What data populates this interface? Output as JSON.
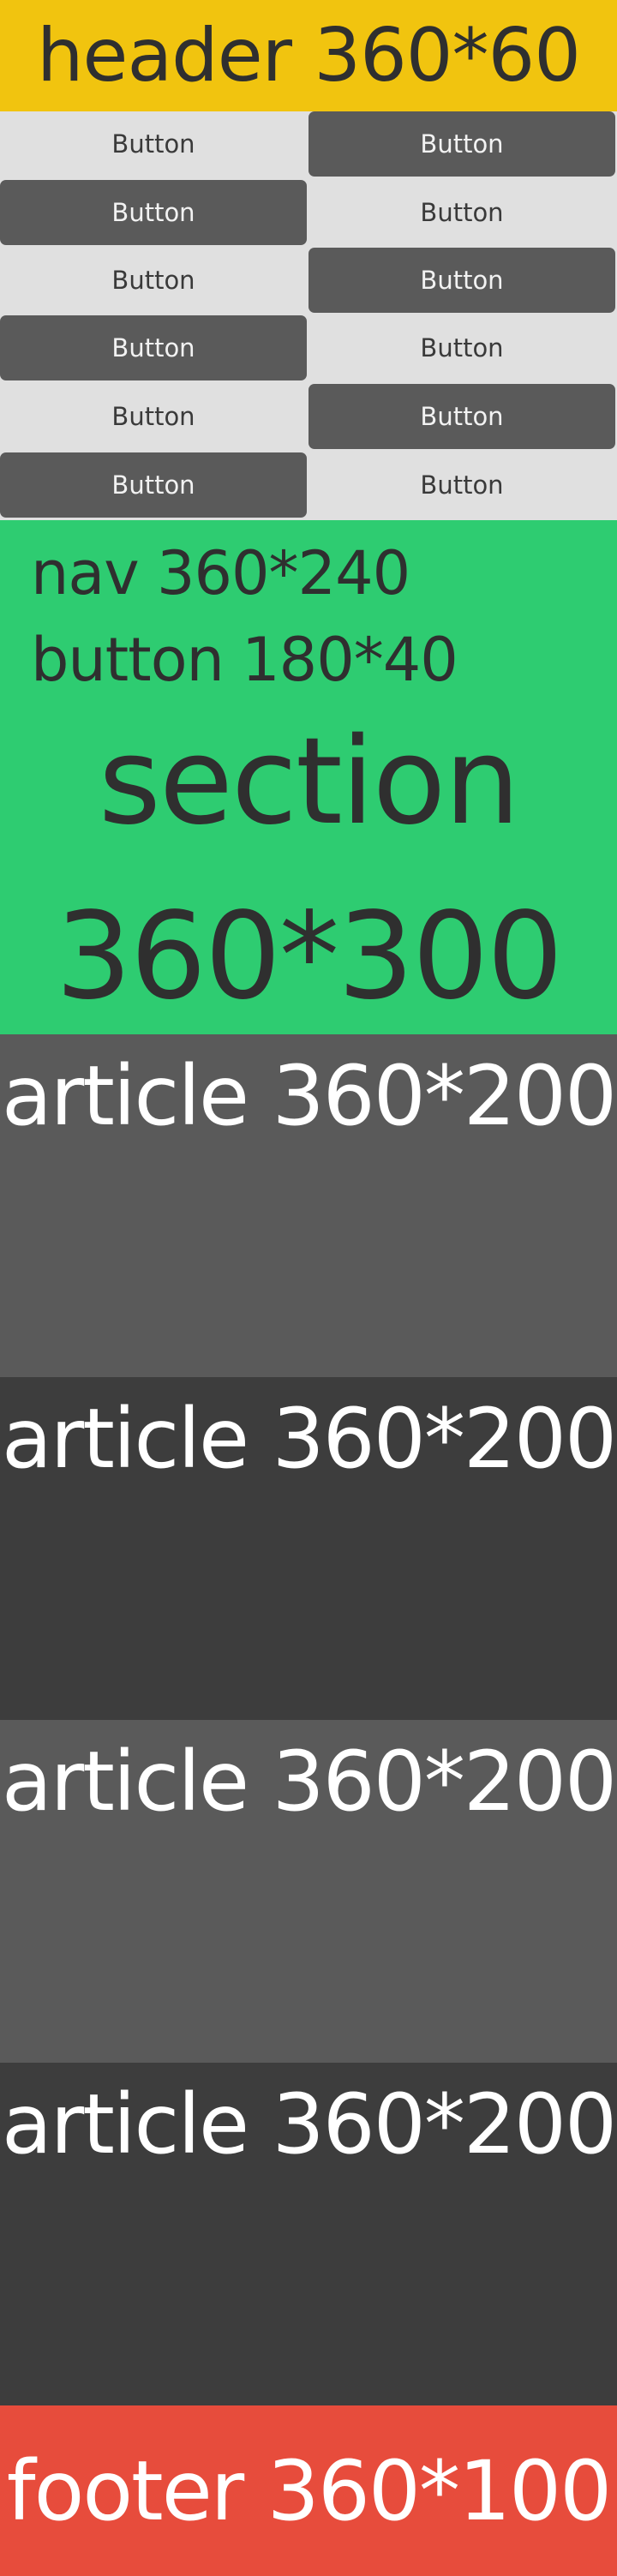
{
  "colors": {
    "header_bg": "#f1c40f",
    "section_bg": "#2ecc71",
    "article_light_bg": "#5a5a5a",
    "article_dark_bg": "#3d3d3d",
    "footer_bg": "#e74c3c",
    "button_light_bg": "#e0e0e0",
    "button_dark_bg": "#5a5a5a"
  },
  "header": {
    "label": "header 360*60"
  },
  "nav": {
    "buttons": [
      {
        "label": "Button",
        "style": "light"
      },
      {
        "label": "Button",
        "style": "dark"
      },
      {
        "label": "Button",
        "style": "dark"
      },
      {
        "label": "Button",
        "style": "light"
      },
      {
        "label": "Button",
        "style": "light"
      },
      {
        "label": "Button",
        "style": "dark"
      },
      {
        "label": "Button",
        "style": "dark"
      },
      {
        "label": "Button",
        "style": "light"
      },
      {
        "label": "Button",
        "style": "light"
      },
      {
        "label": "Button",
        "style": "dark"
      },
      {
        "label": "Button",
        "style": "dark"
      },
      {
        "label": "Button",
        "style": "light"
      }
    ]
  },
  "section": {
    "nav_note": "nav 360*240",
    "button_note": "button 180*40",
    "title_line1": "section",
    "title_line2": "360*300"
  },
  "articles": [
    {
      "label": "article 360*200"
    },
    {
      "label": "article 360*200"
    },
    {
      "label": "article 360*200"
    },
    {
      "label": "article 360*200"
    }
  ],
  "footer": {
    "label": "footer 360*100"
  }
}
